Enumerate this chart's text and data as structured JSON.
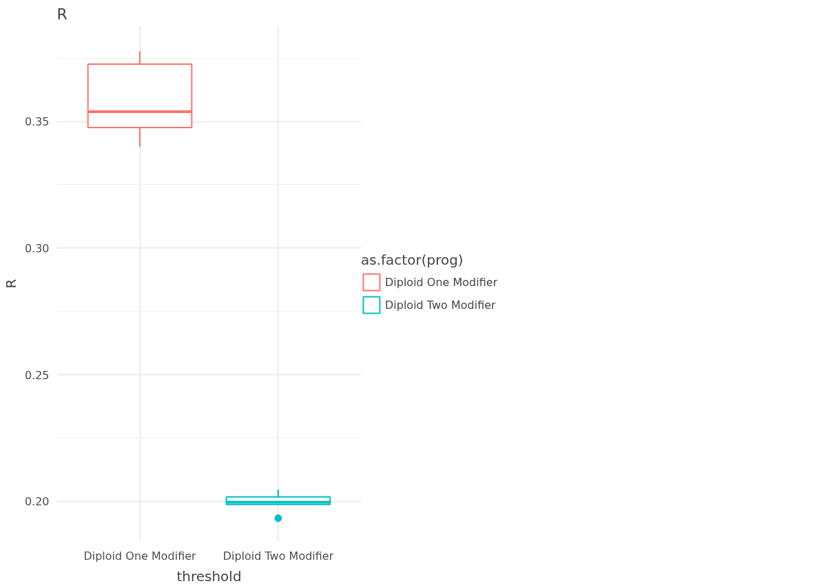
{
  "chart_data": {
    "type": "box",
    "title": "R",
    "xlabel": "threshold",
    "ylabel": "R",
    "legend_title": "as.factor(prog)",
    "categories": [
      "Diploid One Modifier",
      "Diploid Two Modifier"
    ],
    "series": [
      {
        "name": "Diploid One Modifier",
        "color": "#f8766d",
        "boxes": [
          {
            "low": 0.34,
            "q1": 0.3476,
            "median": 0.3538,
            "q3": 0.3726,
            "high": 0.3776
          },
          null
        ]
      },
      {
        "name": "Diploid Two Modifier",
        "color": "#00bfc4",
        "boxes": [
          null,
          {
            "low": 0.1988,
            "q1": 0.1988,
            "median": 0.1997,
            "q3": 0.2018,
            "high": 0.2047,
            "outliers": [
              0.1934
            ]
          }
        ]
      }
    ],
    "ylim": [
      0.1842,
      0.3877
    ],
    "yticks": [
      {
        "value": 0.2,
        "label": "0.20"
      },
      {
        "value": 0.225,
        "label": null
      },
      {
        "value": 0.25,
        "label": "0.25"
      },
      {
        "value": 0.275,
        "label": null
      },
      {
        "value": 0.3,
        "label": "0.30"
      },
      {
        "value": 0.325,
        "label": null
      },
      {
        "value": 0.35,
        "label": "0.35"
      },
      {
        "value": 0.375,
        "label": null
      }
    ],
    "grid": true,
    "legend": "right"
  }
}
